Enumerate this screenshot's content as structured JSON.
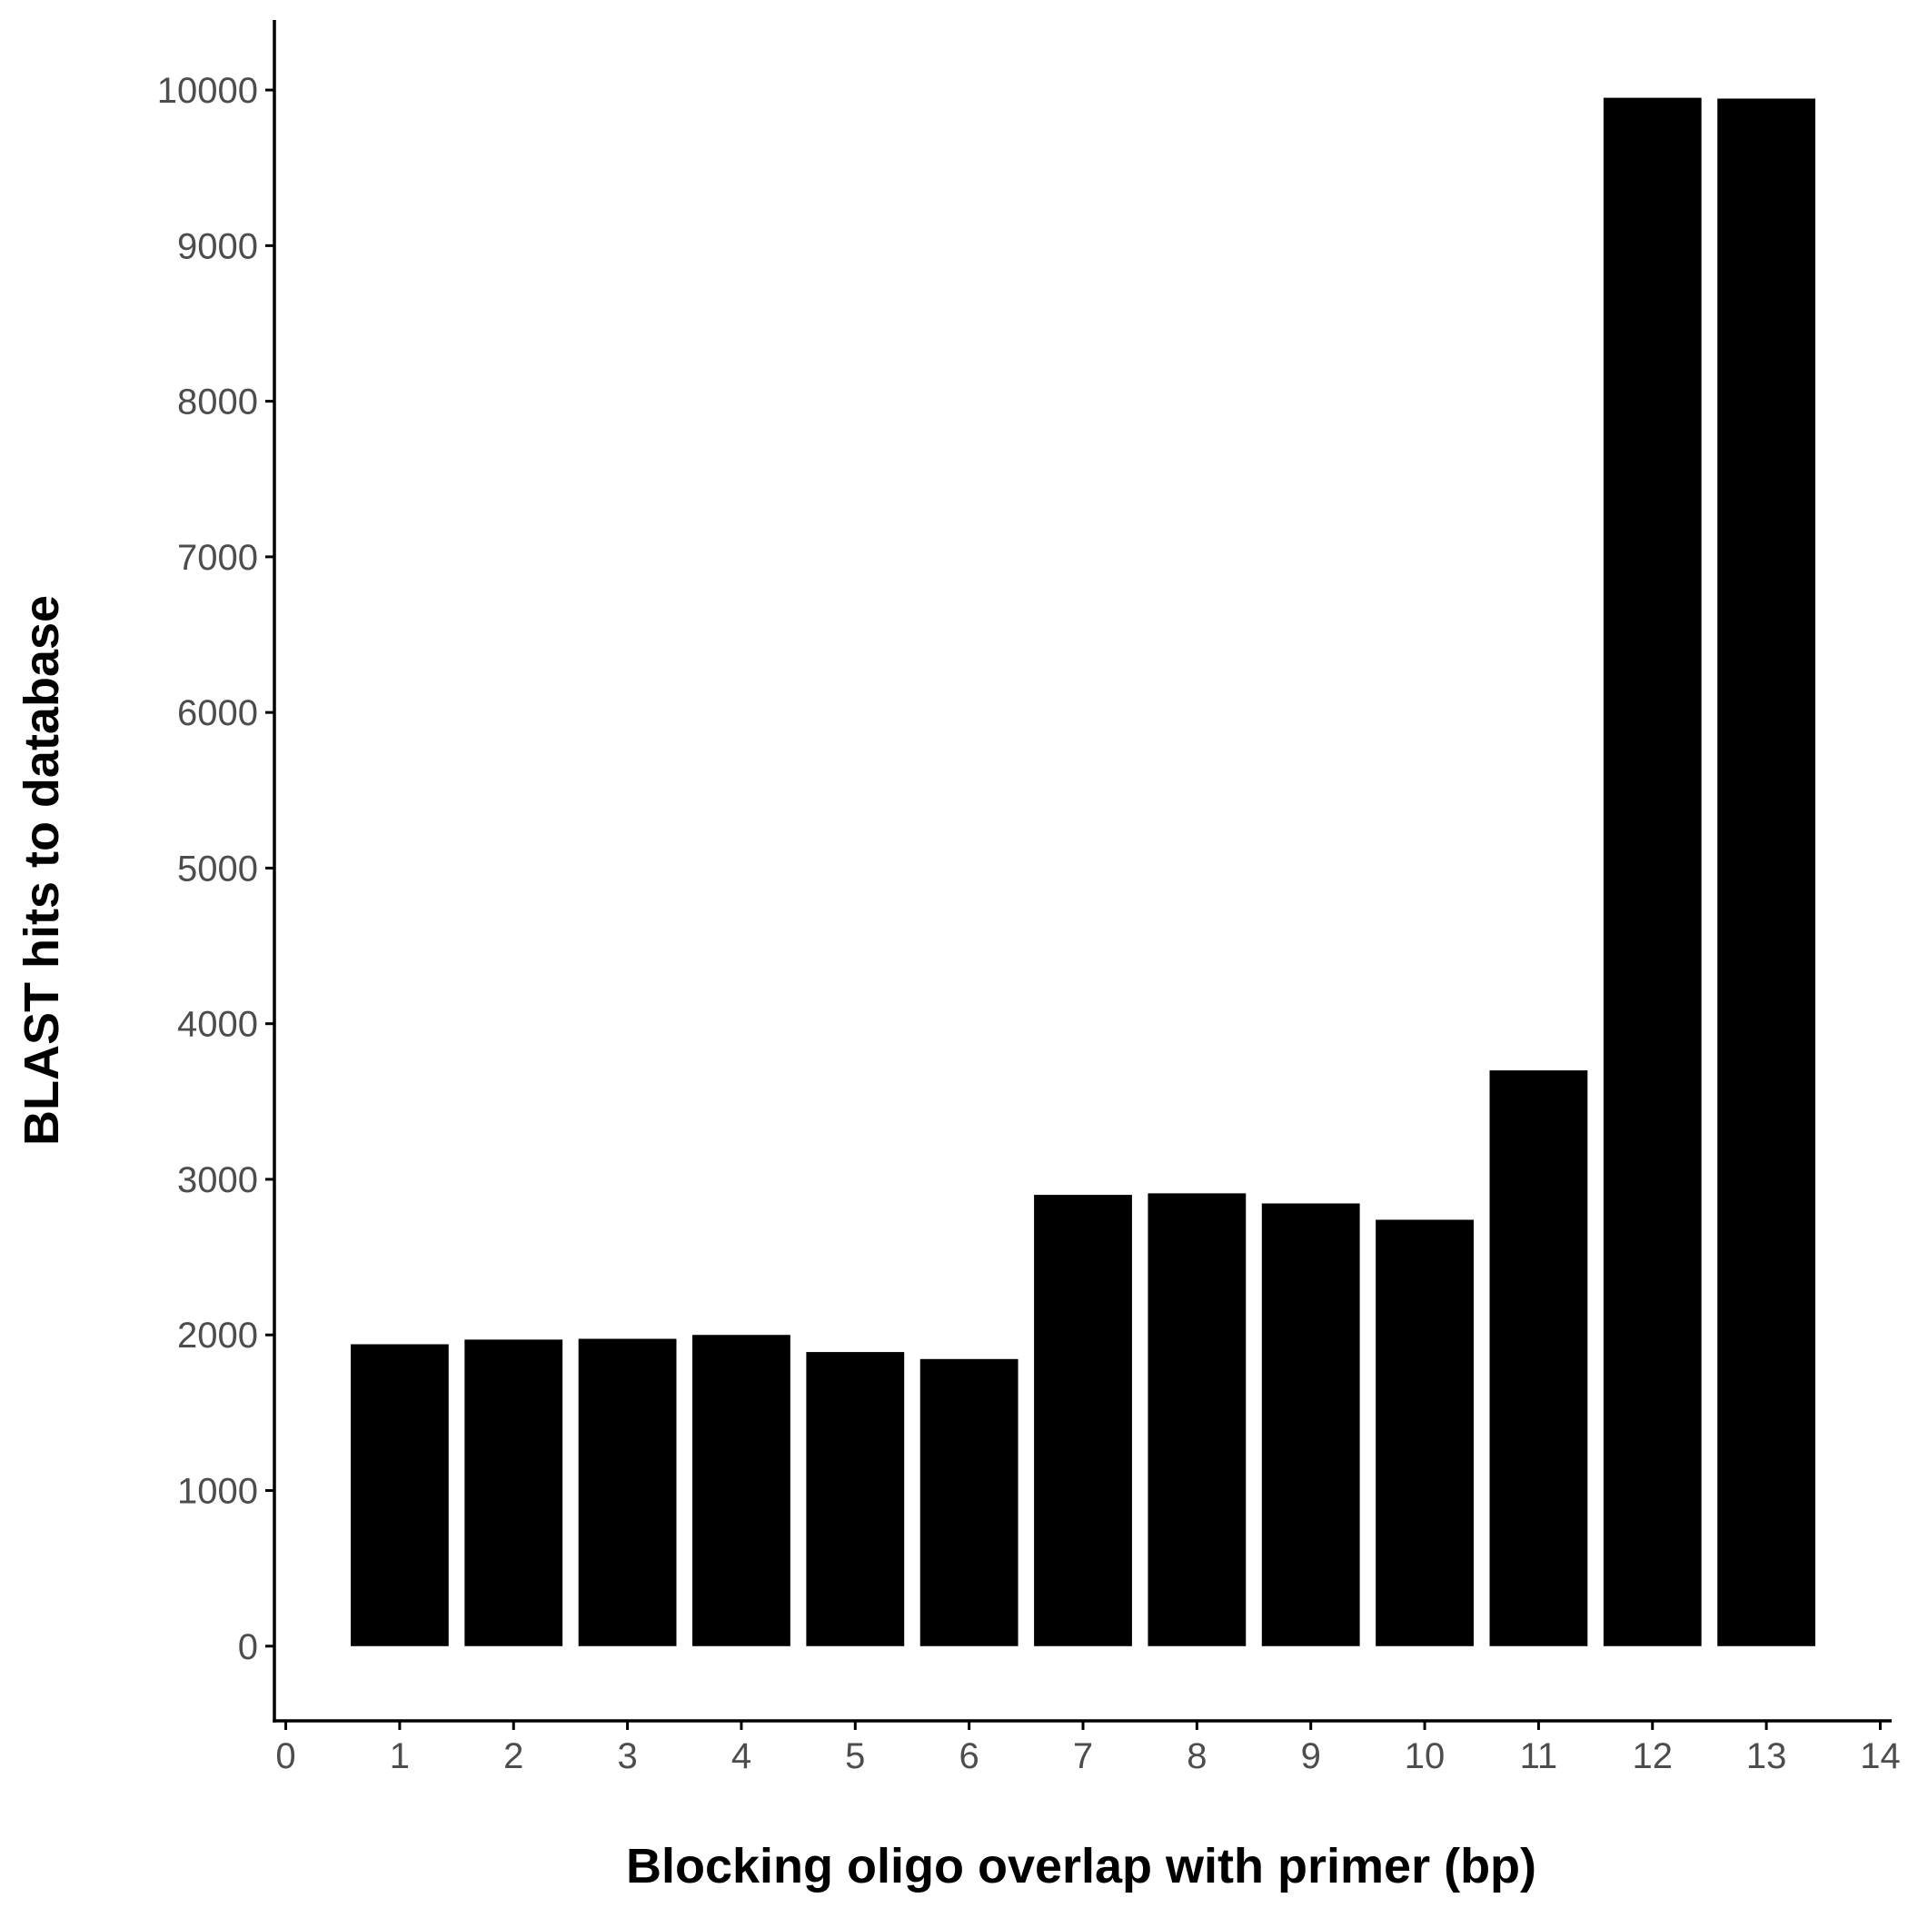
{
  "chart_data": {
    "type": "bar",
    "title": "",
    "xlabel": "Blocking oligo overlap with primer (bp)",
    "ylabel": "BLAST hits to database",
    "x": [
      1,
      2,
      3,
      4,
      5,
      6,
      7,
      8,
      9,
      10,
      11,
      12,
      13
    ],
    "values": [
      1940,
      1970,
      1975,
      2000,
      1890,
      1845,
      2900,
      2910,
      2845,
      2740,
      3700,
      9950,
      9945
    ],
    "xlim": [
      -0.1,
      14.1
    ],
    "ylim": [
      -480,
      10450
    ],
    "xticks": [
      0,
      1,
      2,
      3,
      4,
      5,
      6,
      7,
      8,
      9,
      10,
      11,
      12,
      13,
      14
    ],
    "yticks": [
      0,
      1000,
      2000,
      3000,
      4000,
      5000,
      6000,
      7000,
      8000,
      9000,
      10000
    ],
    "bar_color": "#000000",
    "grid": false,
    "legend": "none"
  }
}
